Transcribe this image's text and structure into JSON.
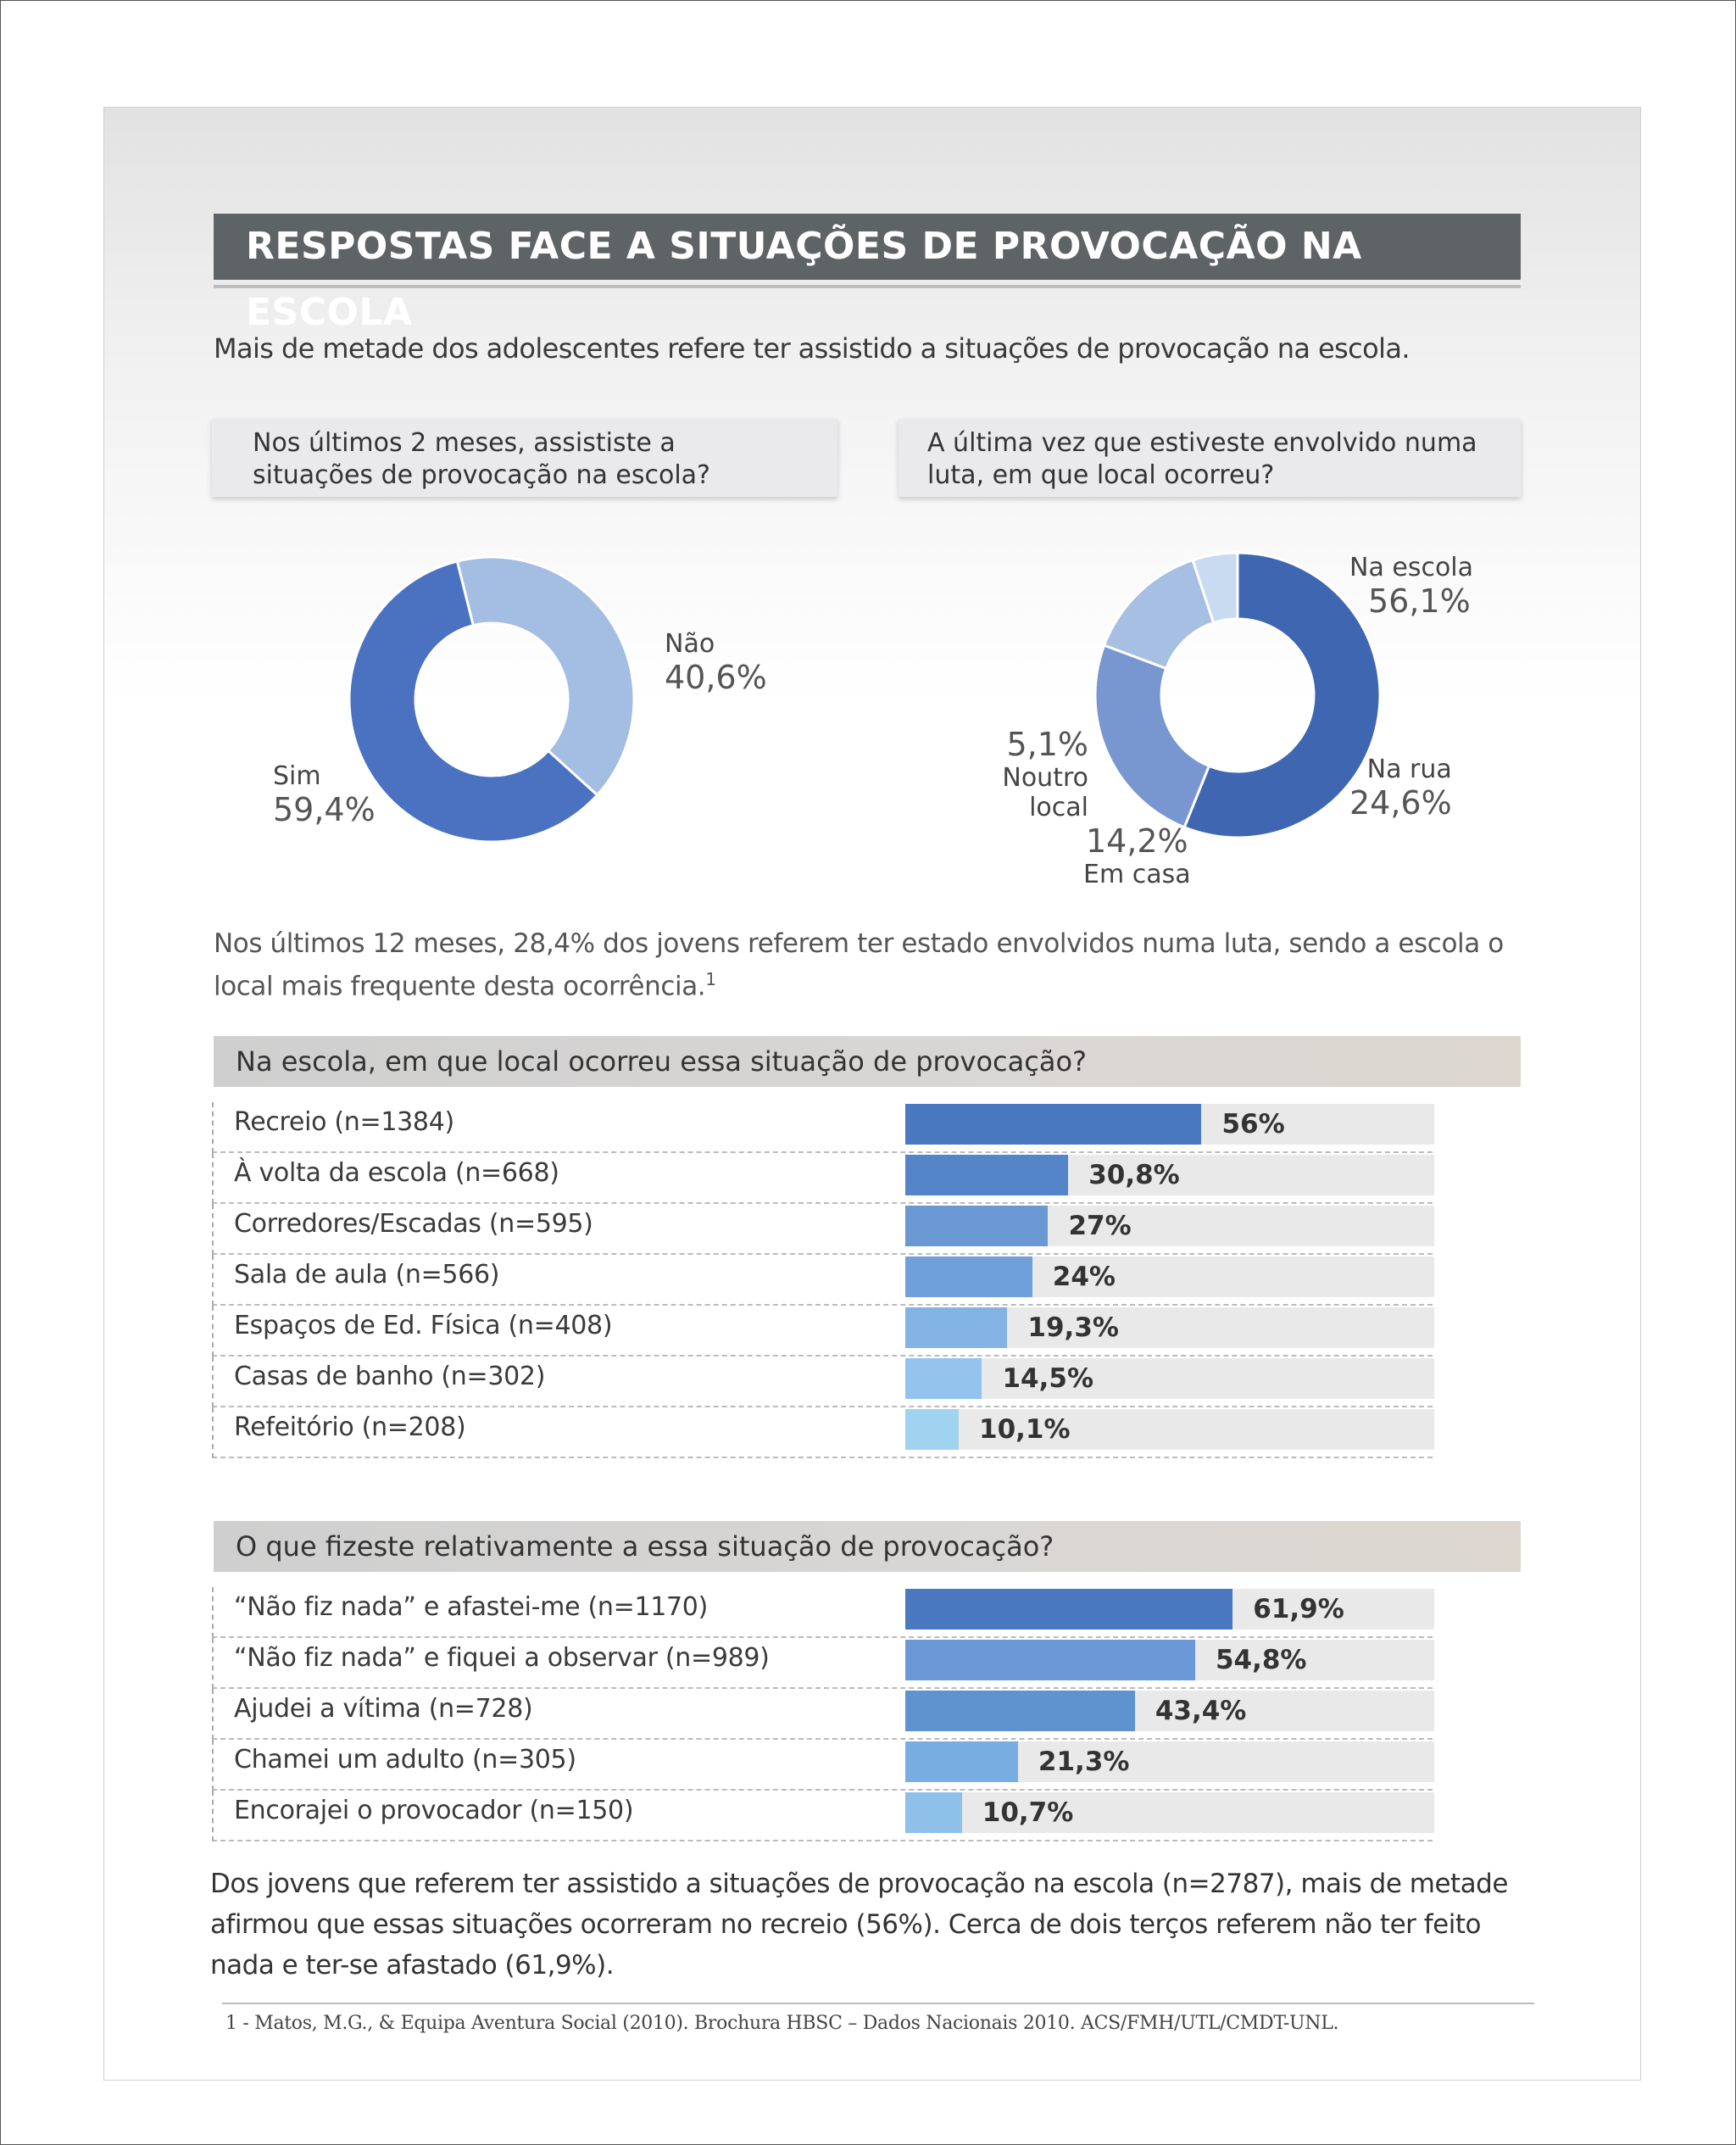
{
  "title": "RESPOSTAS FACE A SITUAÇÕES DE PROVOCAÇÃO NA ESCOLA",
  "intro": "Mais de metade dos adolescentes refere ter assistido a situações de provocação na escola.",
  "note_text": "Nos últimos 12 meses, 28,4% dos jovens referem ter estado envolvidos numa luta, sendo a escola o local mais frequente desta ocorrência.",
  "note_ref": "1",
  "summary": "Dos jovens  que referem ter assistido a situações de provocação na escola (n=2787), mais de metade afirmou que essas situações ocorreram no recreio (56%). Cerca de dois terços referem não ter feito nada e ter-se afastado (61,9%).",
  "footnote": "1 -  Matos, M.G., & Equipa Aventura Social (2010). Brochura HBSC – Dados Nacionais 2010. ACS/FMH/UTL/CMDT-UNL.",
  "chart_data": [
    {
      "type": "pie",
      "title": "Nos últimos 2 meses, assististe a situações de provocação na escola?",
      "slices": [
        {
          "label": "Não",
          "display": "40,6%",
          "value": 40.6,
          "color": "#a3bde3"
        },
        {
          "label": "Sim",
          "display": "59,4%",
          "value": 59.4,
          "color": "#4a72c0"
        }
      ]
    },
    {
      "type": "pie",
      "title": "A última vez que estiveste envolvido numa luta, em que local ocorreu?",
      "slices": [
        {
          "label": "Na escola",
          "display": "56,1%",
          "value": 56.1,
          "color": "#3f66b0"
        },
        {
          "label": "Na rua",
          "display": "24,6%",
          "value": 24.6,
          "color": "#7896d0"
        },
        {
          "label": "Em casa",
          "display": "14,2%",
          "value": 14.2,
          "color": "#a6bfe3"
        },
        {
          "label": "Noutro local",
          "display": "5,1%",
          "value": 5.1,
          "color": "#c9dbf1"
        }
      ]
    },
    {
      "type": "bar",
      "title": "Na escola, em que local ocorreu essa situação de provocação?",
      "categories": [
        "Recreio (n=1384)",
        "À volta da escola (n=668)",
        "Corredores/Escadas (n=595)",
        "Sala de aula (n=566)",
        "Espaços de Ed. Física (n=408)",
        "Casas de banho (n=302)",
        "Refeitório (n=208)"
      ],
      "values": [
        56,
        30.8,
        27,
        24,
        19.3,
        14.5,
        10.1
      ],
      "value_labels": [
        "56%",
        "30,8%",
        "27%",
        "24%",
        "19,3%",
        "14,5%",
        "10,1%"
      ],
      "colors": [
        "#4a78c0",
        "#5485c8",
        "#6a98d2",
        "#6fa0d9",
        "#82b3e2",
        "#93c3ec",
        "#9fd3ef"
      ],
      "ylim": [
        0,
        100
      ]
    },
    {
      "type": "bar",
      "title": "O que fizeste relativamente a essa situação de provocação?",
      "categories": [
        "“Não fiz nada” e afastei-me (n=1170)",
        "“Não fiz nada” e fiquei a observar (n=989)",
        "Ajudei a vítima (n=728)",
        "Chamei um adulto (n=305)",
        "Encorajei o provocador (n=150)"
      ],
      "values": [
        61.9,
        54.8,
        43.4,
        21.3,
        10.7
      ],
      "value_labels": [
        "61,9%",
        "54,8%",
        "43,4%",
        "21,3%",
        "10,7%"
      ],
      "colors": [
        "#4a78c0",
        "#6a98d6",
        "#5e93d0",
        "#78ade2",
        "#8ec0ea"
      ],
      "ylim": [
        0,
        100
      ]
    }
  ]
}
